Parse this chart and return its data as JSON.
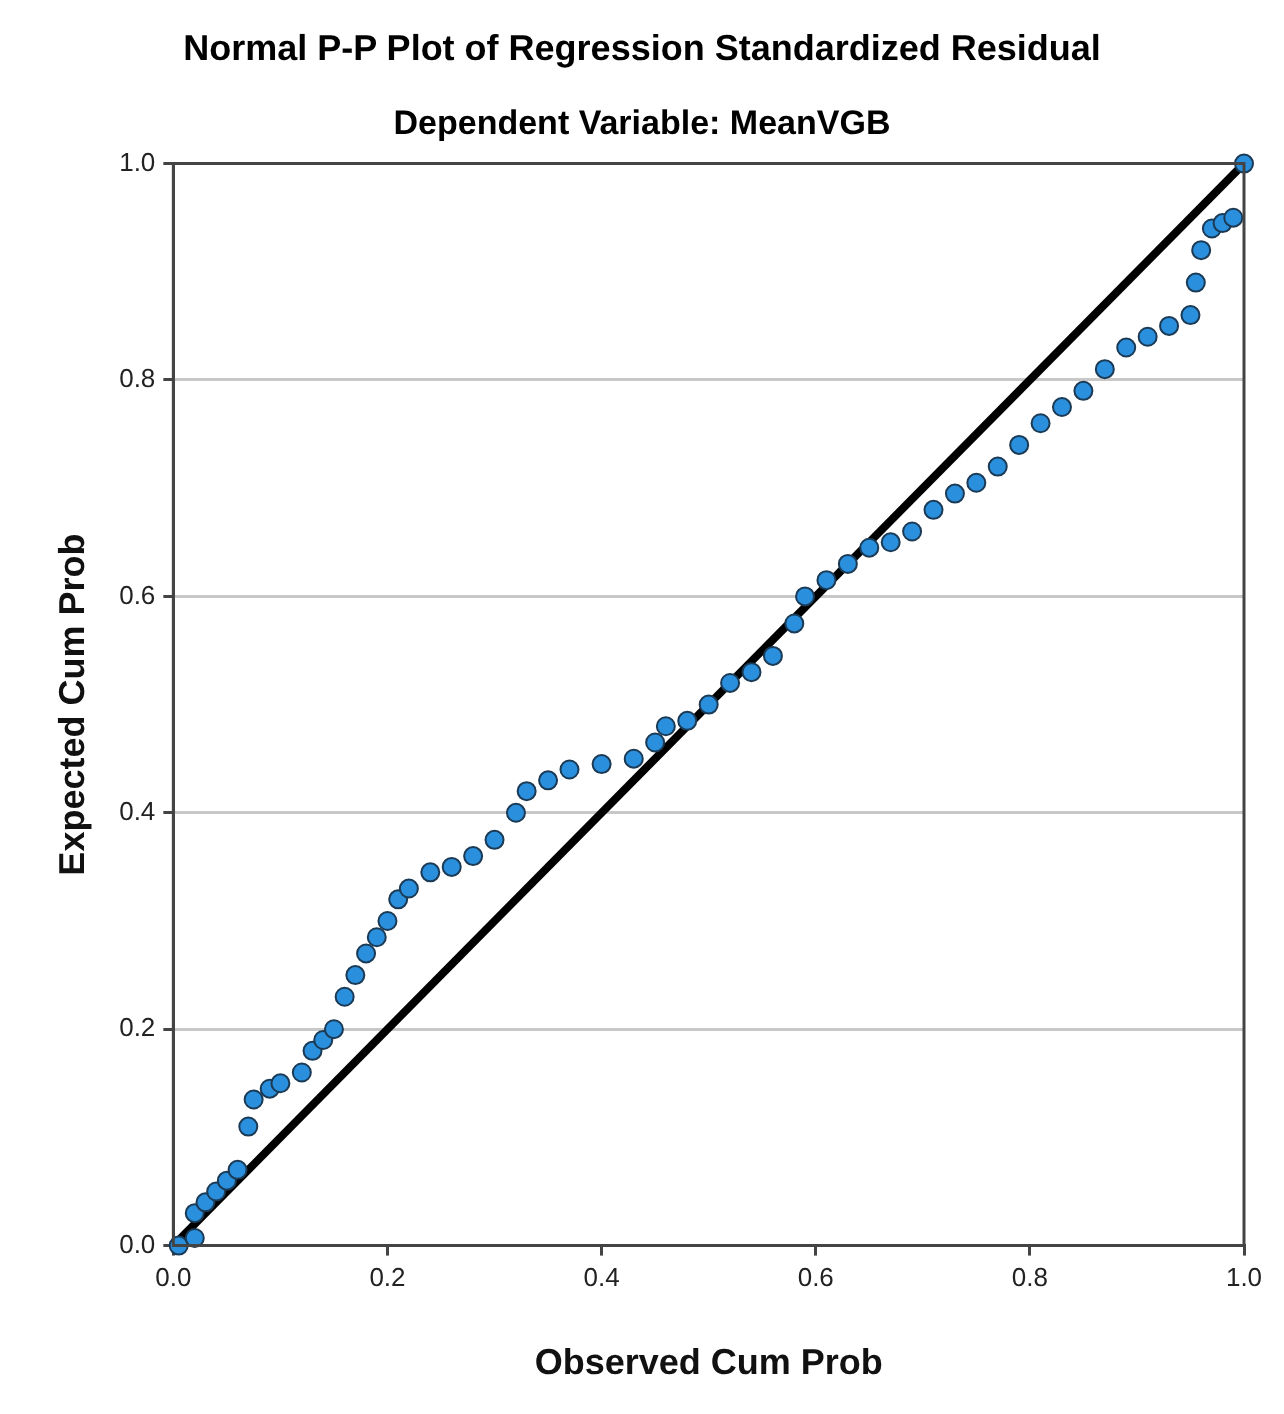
{
  "chart_data": {
    "type": "scatter",
    "title": "Normal P-P Plot of Regression Standardized Residual",
    "subtitle": "Dependent Variable: MeanVGB",
    "xlabel": "Observed Cum Prob",
    "ylabel": "Expected Cum Prob",
    "xlim": [
      0,
      1
    ],
    "ylim": [
      0,
      1
    ],
    "xticks": [
      {
        "value": 0,
        "label": "0.0"
      },
      {
        "value": 0.2,
        "label": "0.2"
      },
      {
        "value": 0.4,
        "label": "0.4"
      },
      {
        "value": 0.6,
        "label": "0.6"
      },
      {
        "value": 0.8,
        "label": "0.8"
      },
      {
        "value": 1,
        "label": "1.0"
      }
    ],
    "yticks": [
      {
        "value": 0,
        "label": "0.0"
      },
      {
        "value": 0.2,
        "label": "0.2"
      },
      {
        "value": 0.4,
        "label": "0.4"
      },
      {
        "value": 0.6,
        "label": "0.6"
      },
      {
        "value": 0.8,
        "label": "0.8"
      },
      {
        "value": 1,
        "label": "1.0"
      }
    ],
    "grid": "y",
    "legend": false,
    "marker": "circle",
    "series": [
      {
        "color": "#2a8fdc",
        "x": [
          0.005,
          0.02,
          0.02,
          0.03,
          0.04,
          0.05,
          0.06,
          0.07,
          0.075,
          0.09,
          0.1,
          0.12,
          0.13,
          0.14,
          0.15,
          0.16,
          0.17,
          0.18,
          0.19,
          0.2,
          0.21,
          0.22,
          0.24,
          0.26,
          0.28,
          0.3,
          0.32,
          0.33,
          0.35,
          0.37,
          0.4,
          0.43,
          0.45,
          0.46,
          0.48,
          0.5,
          0.52,
          0.54,
          0.56,
          0.58,
          0.59,
          0.61,
          0.63,
          0.65,
          0.67,
          0.69,
          0.71,
          0.73,
          0.75,
          0.77,
          0.79,
          0.81,
          0.83,
          0.85,
          0.87,
          0.89,
          0.91,
          0.93,
          0.95,
          0.955,
          0.96,
          0.97,
          0.98,
          0.99,
          1.0
        ],
        "values": [
          0.0,
          0.007,
          0.03,
          0.04,
          0.05,
          0.06,
          0.07,
          0.11,
          0.135,
          0.145,
          0.15,
          0.16,
          0.18,
          0.19,
          0.2,
          0.23,
          0.25,
          0.27,
          0.285,
          0.3,
          0.32,
          0.33,
          0.345,
          0.35,
          0.36,
          0.375,
          0.4,
          0.42,
          0.43,
          0.44,
          0.445,
          0.45,
          0.465,
          0.48,
          0.485,
          0.5,
          0.52,
          0.53,
          0.545,
          0.575,
          0.6,
          0.615,
          0.63,
          0.645,
          0.65,
          0.66,
          0.68,
          0.695,
          0.705,
          0.72,
          0.74,
          0.76,
          0.775,
          0.79,
          0.81,
          0.83,
          0.84,
          0.85,
          0.86,
          0.89,
          0.92,
          0.94,
          0.945,
          0.95,
          1.0
        ]
      },
      {
        "type": "line",
        "color": "#000000",
        "x": [
          0,
          1
        ],
        "values": [
          0,
          1
        ],
        "marker": "none",
        "line_style": "solid"
      }
    ]
  }
}
